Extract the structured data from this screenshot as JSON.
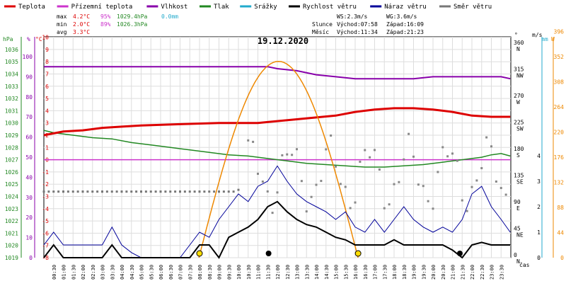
{
  "chart_data": {
    "type": "line",
    "title": "19.12.2020",
    "xlabel": "čas",
    "x_ticks": [
      "00:30",
      "01:00",
      "01:30",
      "02:00",
      "02:30",
      "03:00",
      "03:30",
      "04:00",
      "04:30",
      "05:00",
      "05:30",
      "06:00",
      "06:30",
      "07:00",
      "07:30",
      "08:00",
      "08:30",
      "09:00",
      "09:30",
      "10:00",
      "10:30",
      "11:00",
      "11:30",
      "12:00",
      "12:30",
      "13:00",
      "13:30",
      "14:00",
      "14:30",
      "15:00",
      "15:30",
      "16:00",
      "16:30",
      "17:00",
      "17:30",
      "18:00",
      "18:30",
      "19:00",
      "19:30",
      "20:00",
      "20:30",
      "21:00",
      "21:30",
      "22:00",
      "22:30",
      "23:00",
      "23:30"
    ],
    "legend": [
      {
        "name": "Teplota",
        "color": "#dd0000"
      },
      {
        "name": "Přízemní teplota",
        "color": "#cc33cc"
      },
      {
        "name": "Vlhkost",
        "color": "#8800aa"
      },
      {
        "name": "Tlak",
        "color": "#228822"
      },
      {
        "name": "Srážky",
        "color": "#22aacc"
      },
      {
        "name": "Rychlost větru",
        "color": "#000000"
      },
      {
        "name": "Náraz větru",
        "color": "#000099"
      },
      {
        "name": "Směr větru",
        "color": "#777777"
      }
    ],
    "stats": {
      "labels": [
        "max",
        "min",
        "avg"
      ],
      "temp": [
        "4.2°C",
        "2.0°C",
        "3.3°C"
      ],
      "hum": [
        "95%",
        "89%",
        ""
      ],
      "press": [
        "1029.4hPa",
        "1026.3hPa",
        ""
      ],
      "rain": [
        "0.0mm",
        "",
        ""
      ]
    },
    "info": {
      "ws": "WS:2.3m/s",
      "wg": "WG:3.6m/s",
      "sun_label": "Slunce",
      "sun_rise": "Východ:07:58",
      "sun_set": "Západ:16:09",
      "moon_label": "Měsíc",
      "moon_rise": "Východ:11:34",
      "moon_set": "Západ:21:23"
    },
    "axes": {
      "hpa": {
        "label": "hPa",
        "ticks": [
          1019,
          1020,
          1021,
          1022,
          1023,
          1024,
          1025,
          1026,
          1027,
          1028,
          1029,
          1030,
          1031,
          1032,
          1033,
          1034,
          1035,
          1036
        ],
        "color": "#228822"
      },
      "pct": {
        "label": "%",
        "ticks": [
          0,
          10,
          20,
          30,
          40,
          50,
          60,
          70,
          80,
          90,
          100
        ],
        "color": "#8800aa"
      },
      "temp": {
        "label": "°C",
        "ticks": [
          -8,
          -7,
          -6,
          -5,
          -4,
          -3,
          -2,
          -1,
          0,
          1,
          2,
          3,
          4,
          5,
          6,
          7,
          8,
          9,
          10
        ],
        "color": "#dd0000"
      },
      "dir": {
        "label": "°",
        "ticks": [
          0,
          45,
          90,
          135,
          180,
          225,
          270,
          315,
          360
        ],
        "names": [
          "N",
          "NE",
          "E",
          "SE",
          "S",
          "SW",
          "W",
          "NW",
          "N"
        ]
      },
      "ms": {
        "label": "m/s",
        "ticks": [
          0,
          1,
          2,
          3,
          4
        ]
      },
      "mm": {
        "label": "mm",
        "ticks": [
          0,
          1
        ]
      },
      "w": {
        "label": "W",
        "ticks": [
          0,
          44,
          88,
          132,
          176,
          220,
          264,
          308,
          352,
          396
        ],
        "color": "#ee8800"
      }
    },
    "series": {
      "temp_x": [
        0,
        1,
        2,
        3,
        4,
        5,
        7,
        9,
        11,
        13,
        15,
        16,
        17,
        18,
        19,
        20,
        21,
        22,
        23,
        23.97
      ],
      "temp_y": [
        2.0,
        2.3,
        2.4,
        2.6,
        2.7,
        2.8,
        2.9,
        3.0,
        3.0,
        3.3,
        3.6,
        3.9,
        4.1,
        4.2,
        4.2,
        4.1,
        3.9,
        3.6,
        3.5,
        3.5
      ],
      "ground_temp": 0.0,
      "hum_x": [
        0,
        2,
        4,
        6,
        8,
        10,
        11.5,
        12,
        13,
        14,
        15,
        16,
        17,
        18,
        19,
        20,
        21,
        22,
        23,
        23.5,
        23.97
      ],
      "hum_y": [
        95,
        95,
        95,
        95,
        95,
        95,
        95,
        94,
        93,
        91,
        90,
        89,
        89,
        89,
        89,
        90,
        90,
        90,
        90,
        90,
        89
      ],
      "press_x": [
        0,
        0.5,
        1.5,
        2.5,
        3.5,
        4.5,
        5.5,
        6.5,
        7.5,
        8.5,
        9.5,
        10.5,
        11.5,
        12.5,
        13.5,
        14.5,
        15.5,
        16.5,
        17.5,
        18.5,
        19.5,
        20.5,
        21.5,
        22.5,
        23,
        23.5,
        23.97
      ],
      "press_y": [
        1029.4,
        1029.2,
        1029.0,
        1028.8,
        1028.7,
        1028.4,
        1028.2,
        1028.0,
        1027.8,
        1027.6,
        1027.4,
        1027.3,
        1027.1,
        1026.9,
        1026.7,
        1026.6,
        1026.5,
        1026.4,
        1026.4,
        1026.5,
        1026.6,
        1026.8,
        1027.0,
        1027.2,
        1027.4,
        1027.5,
        1027.3
      ],
      "dir_steady_x": [
        0,
        1,
        2,
        3,
        4,
        5,
        6,
        7,
        8,
        9,
        10
      ],
      "dir_steady_y": [
        112,
        112,
        112,
        112,
        112,
        112,
        112,
        112,
        112,
        112,
        115
      ],
      "wind_x": [
        0,
        0.5,
        1,
        1.5,
        2,
        2.5,
        3,
        3.5,
        4,
        4.5,
        5,
        5.5,
        6,
        6.5,
        7,
        7.5,
        8,
        8.5,
        9,
        9.5,
        10,
        10.5,
        11,
        11.5,
        12,
        12.5,
        13,
        13.5,
        14,
        14.5,
        15,
        15.5,
        16,
        16.5,
        17,
        17.5,
        18,
        18.5,
        19,
        19.5,
        20,
        20.5,
        21,
        21.5,
        22,
        22.5,
        23,
        23.5,
        23.97
      ],
      "wind_y": [
        0,
        0.5,
        0,
        0,
        0,
        0,
        0,
        0.5,
        0,
        0,
        0,
        0,
        0,
        0,
        0,
        0,
        0.5,
        0.5,
        0,
        0.8,
        1.0,
        1.2,
        1.5,
        2.0,
        2.2,
        1.8,
        1.5,
        1.3,
        1.2,
        1.0,
        0.8,
        0.7,
        0.5,
        0.5,
        0.5,
        0.5,
        0.7,
        0.5,
        0.5,
        0.5,
        0.5,
        0.5,
        0.3,
        0,
        0.5,
        0.6,
        0.5,
        0.5,
        0.5
      ],
      "gust_x": [
        0,
        0.5,
        1,
        1.5,
        2,
        2.5,
        3,
        3.5,
        4,
        4.5,
        5,
        5.5,
        6,
        6.5,
        7,
        7.5,
        8,
        8.5,
        9,
        9.5,
        10,
        10.5,
        11,
        11.5,
        12,
        12.5,
        13,
        13.5,
        14,
        14.5,
        15,
        15.5,
        16,
        16.5,
        17,
        17.5,
        18,
        18.5,
        19,
        19.5,
        20,
        20.5,
        21,
        21.5,
        22,
        22.5,
        23,
        23.5,
        23.97
      ],
      "gust_y": [
        0.5,
        1.0,
        0.5,
        0.5,
        0.5,
        0.5,
        0.5,
        1.2,
        0.5,
        0.2,
        0,
        0,
        0,
        0,
        0,
        0.5,
        1.0,
        0.8,
        1.5,
        2.0,
        2.5,
        2.2,
        2.8,
        3.0,
        3.6,
        3.0,
        2.5,
        2.2,
        2.0,
        1.8,
        1.5,
        1.8,
        1.2,
        1.0,
        1.5,
        1.0,
        1.5,
        2.0,
        1.5,
        1.2,
        1.0,
        1.2,
        1.0,
        1.5,
        2.5,
        2.8,
        2.0,
        1.5,
        1.0
      ],
      "solar_peak": 352,
      "solar_range": [
        7.97,
        16.15
      ],
      "sun_markers": [
        8.0,
        16.15
      ],
      "moon_markers": [
        11.55,
        21.38
      ]
    }
  }
}
